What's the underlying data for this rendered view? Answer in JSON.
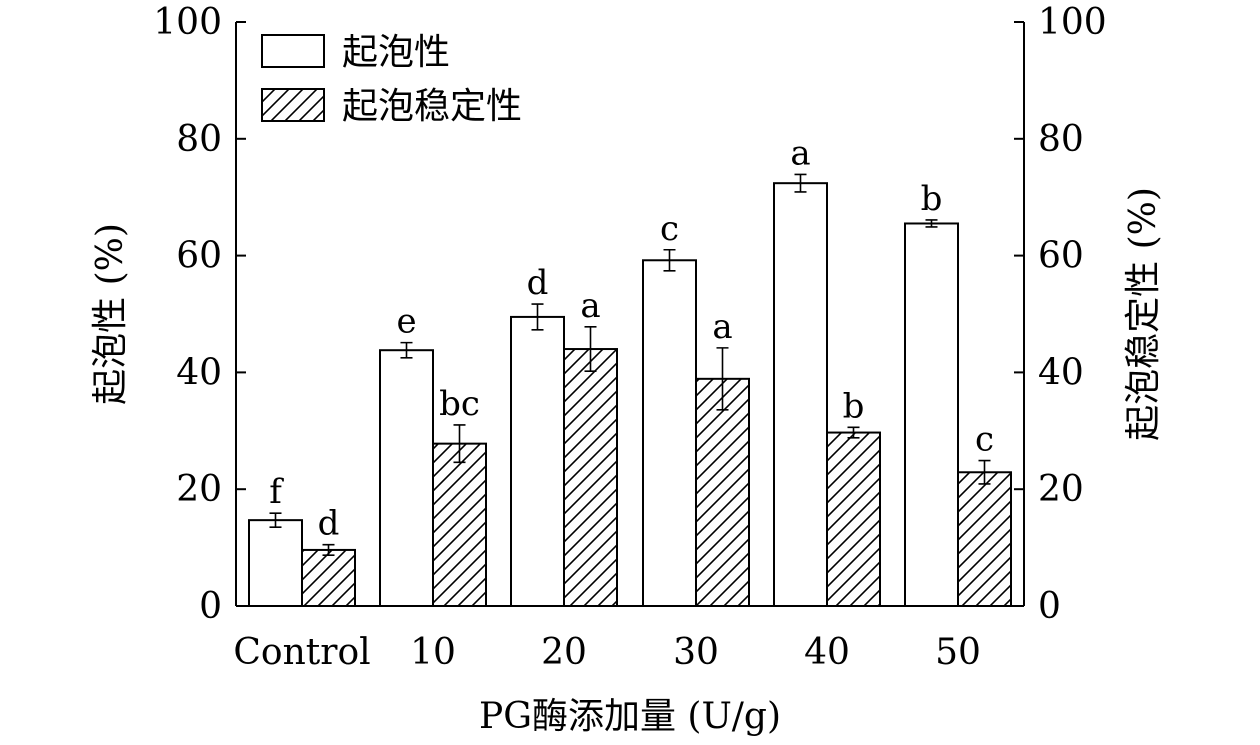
{
  "chart_data": {
    "type": "bar",
    "categories": [
      "Control",
      "10",
      "20",
      "30",
      "40",
      "50"
    ],
    "series": [
      {
        "name": "起泡性",
        "pattern": "none",
        "values": [
          14.7,
          43.8,
          49.5,
          59.2,
          72.4,
          65.5
        ],
        "errors": [
          1.2,
          1.3,
          2.2,
          1.8,
          1.5,
          0.6
        ],
        "letters": [
          "f",
          "e",
          "d",
          "c",
          "a",
          "b"
        ]
      },
      {
        "name": "起泡稳定性",
        "pattern": "hatch",
        "values": [
          9.6,
          27.8,
          44.0,
          38.9,
          29.7,
          22.9
        ],
        "errors": [
          0.9,
          3.2,
          3.8,
          5.3,
          0.9,
          2.0
        ],
        "letters": [
          "d",
          "bc",
          "a",
          "a",
          "b",
          "c"
        ]
      }
    ],
    "xlabel": "PG酶添加量 (U/g)",
    "ylabel": "起泡性 (%)",
    "ylabel_right": "起泡稳定性 (%)",
    "ylim": [
      0,
      100
    ],
    "y_ticks": [
      0,
      20,
      40,
      60,
      80,
      100
    ],
    "legend_position": "top-left",
    "grid": false,
    "colors": {
      "bar_edge": "#000000",
      "bar_fill": "#ffffff",
      "hatch": "#000000"
    }
  }
}
